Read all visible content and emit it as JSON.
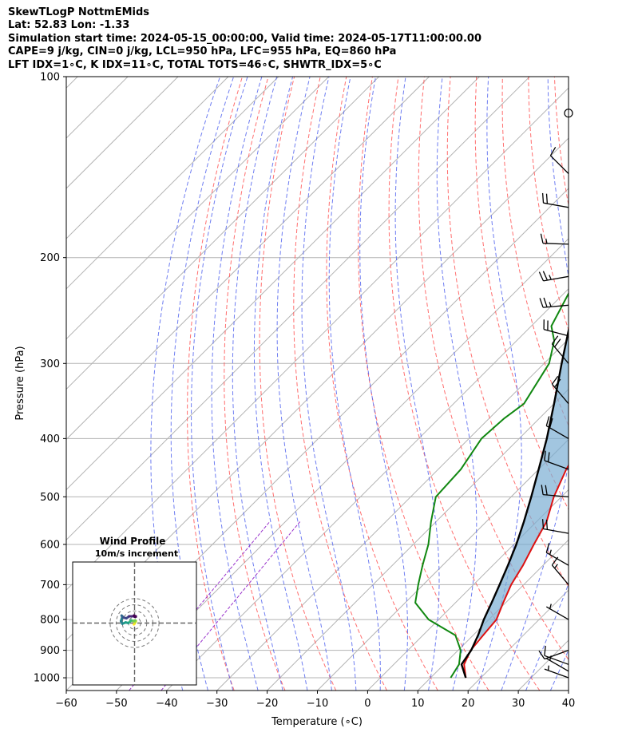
{
  "header": {
    "line1": "SkewTLogP NottmEMids",
    "line2": "Lat: 52.83   Lon: -1.33",
    "line3": "Simulation start time: 2024-05-15_00:00:00, Valid time: 2024-05-17T11:00:00.00",
    "line4": "CAPE=9 j/kg, CIN=0 j/kg, LCL=950 hPa, LFC=955 hPa, EQ=860 hPa",
    "line5": "LFT IDX=1∘C, K IDX=11∘C, TOTAL TOTS=46∘C, SHWTR_IDX=5∘C"
  },
  "chart_data": [
    {
      "type": "line",
      "subtype": "skew-t log-p",
      "xlabel": "Temperature (∘C)",
      "ylabel": "Pressure (hPa)",
      "xlim": [
        -60,
        40
      ],
      "ylim": [
        1050,
        100
      ],
      "y_scale": "log",
      "x_ticks": [
        -60,
        -50,
        -40,
        -30,
        -20,
        -10,
        0,
        10,
        20,
        30,
        40
      ],
      "y_ticks": [
        100,
        200,
        300,
        400,
        500,
        600,
        700,
        800,
        900,
        1000
      ],
      "grid": true,
      "series": [
        {
          "color": "#dd1111",
          "points": [
            [
              17,
              1000
            ],
            [
              14,
              950
            ],
            [
              12.5,
              900
            ],
            [
              12,
              850
            ],
            [
              11.5,
              800
            ],
            [
              9.5,
              750
            ],
            [
              7.5,
              700
            ],
            [
              6,
              650
            ],
            [
              4,
              600
            ],
            [
              2,
              550
            ],
            [
              -1.5,
              500
            ],
            [
              -4.5,
              450
            ],
            [
              -7,
              400
            ],
            [
              -10,
              350
            ],
            [
              -14,
              300
            ],
            [
              -17,
              280
            ],
            [
              -17.5,
              265
            ],
            [
              -20,
              250
            ],
            [
              -24,
              235
            ],
            [
              -31,
              210
            ],
            [
              -40,
              190
            ],
            [
              -47,
              175
            ],
            [
              -52,
              160
            ],
            [
              -58,
              145
            ],
            [
              -63,
              130
            ],
            [
              -69,
              115
            ],
            [
              -73,
              100
            ]
          ]
        },
        {
          "color": "#118811",
          "points": [
            [
              14,
              1000
            ],
            [
              13,
              950
            ],
            [
              10.5,
              900
            ],
            [
              6.5,
              850
            ],
            [
              -2,
              800
            ],
            [
              -8,
              750
            ],
            [
              -11,
              700
            ],
            [
              -14,
              650
            ],
            [
              -17,
              600
            ],
            [
              -21,
              550
            ],
            [
              -25,
              500
            ],
            [
              -25.5,
              450
            ],
            [
              -27.5,
              400
            ],
            [
              -27,
              370
            ],
            [
              -26,
              350
            ],
            [
              -29,
              300
            ],
            [
              -32.5,
              275
            ],
            [
              -36,
              260
            ],
            [
              -39,
              230
            ],
            [
              -41,
              210
            ],
            [
              -42.5,
              200
            ],
            [
              -45,
              190
            ],
            [
              -48,
              175
            ],
            [
              -51,
              160
            ],
            [
              -53,
              145
            ],
            [
              -57,
              130
            ],
            [
              -62,
              115
            ],
            [
              -67,
              100
            ]
          ]
        },
        {
          "color": "#000000",
          "points": [
            [
              17,
              1000
            ],
            [
              13.5,
              950
            ],
            [
              12.6,
              900
            ],
            [
              11,
              850
            ],
            [
              9,
              800
            ],
            [
              7.2,
              750
            ],
            [
              5.2,
              700
            ],
            [
              3,
              650
            ],
            [
              0.5,
              600
            ],
            [
              -2.5,
              550
            ],
            [
              -6,
              500
            ],
            [
              -10,
              450
            ],
            [
              -14.5,
              400
            ],
            [
              -20,
              350
            ],
            [
              -26.5,
              300
            ],
            [
              -34,
              250
            ],
            [
              -39,
              225
            ],
            [
              -44.5,
              200
            ],
            [
              -51,
              175
            ],
            [
              -58.5,
              150
            ],
            [
              -67,
              125
            ],
            [
              -77,
              100
            ]
          ]
        }
      ],
      "wind_barbs": [
        {
          "p": 1000,
          "speed": 5,
          "dir": 290
        },
        {
          "p": 975,
          "speed": 5,
          "dir": 300
        },
        {
          "p": 950,
          "speed": 10,
          "dir": 290
        },
        {
          "p": 900,
          "speed": 10,
          "dir": 250
        },
        {
          "p": 800,
          "speed": 5,
          "dir": 300
        },
        {
          "p": 700,
          "speed": 15,
          "dir": 320
        },
        {
          "p": 650,
          "speed": 15,
          "dir": 300
        },
        {
          "p": 575,
          "speed": 20,
          "dir": 280
        },
        {
          "p": 500,
          "speed": 20,
          "dir": 275
        },
        {
          "p": 450,
          "speed": 20,
          "dir": 290
        },
        {
          "p": 400,
          "speed": 20,
          "dir": 300
        },
        {
          "p": 350,
          "speed": 20,
          "dir": 320
        },
        {
          "p": 300,
          "speed": 20,
          "dir": 320
        },
        {
          "p": 270,
          "speed": 20,
          "dir": 285
        },
        {
          "p": 240,
          "speed": 25,
          "dir": 265
        },
        {
          "p": 215,
          "speed": 25,
          "dir": 260
        },
        {
          "p": 190,
          "speed": 15,
          "dir": 272
        },
        {
          "p": 165,
          "speed": 20,
          "dir": 280
        },
        {
          "p": 145,
          "speed": 10,
          "dir": 315
        },
        {
          "p": 115,
          "speed": 0,
          "dir": 0
        }
      ]
    },
    {
      "type": "line",
      "subtype": "hodograph",
      "title": "Wind Profile",
      "subtitle": "10m/s increment",
      "ring_step": 10,
      "rings": 4,
      "points": [
        [
          -1,
          -2
        ],
        [
          0,
          -1
        ],
        [
          1,
          1
        ],
        [
          2,
          3
        ],
        [
          1,
          4
        ],
        [
          -2,
          3
        ],
        [
          -5,
          4
        ],
        [
          -7,
          2
        ],
        [
          -9,
          0
        ],
        [
          -13,
          1
        ],
        [
          -18,
          -1
        ],
        [
          -20,
          3
        ],
        [
          -18,
          9
        ],
        [
          -19,
          11
        ],
        [
          -16,
          8
        ],
        [
          -12,
          7
        ],
        [
          -8,
          10
        ],
        [
          -2,
          10
        ],
        [
          1,
          9
        ],
        [
          -1,
          11
        ],
        [
          2,
          10
        ]
      ]
    }
  ]
}
